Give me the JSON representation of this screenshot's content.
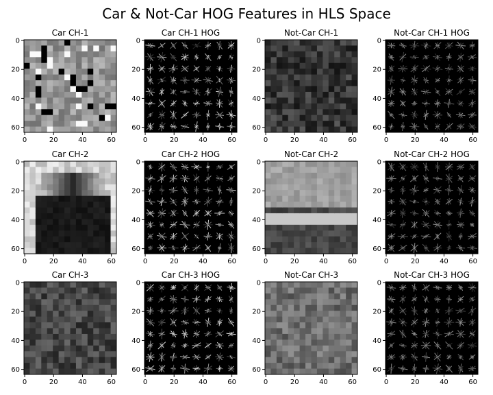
{
  "figure": {
    "title": "Car & Not-Car HOG Features in HLS Space",
    "x_ticks": [
      "0",
      "20",
      "40",
      "60"
    ],
    "y_ticks": [
      "0",
      "20",
      "40",
      "60"
    ],
    "panels": [
      {
        "title": "Car CH-1",
        "kind": "image",
        "tone": "car-ch1"
      },
      {
        "title": "Car CH-1 HOG",
        "kind": "hog",
        "tone": "car-hog1"
      },
      {
        "title": "Not-Car CH-1",
        "kind": "image",
        "tone": "notcar-ch1"
      },
      {
        "title": "Not-Car CH-1 HOG",
        "kind": "hog",
        "tone": "notcar-hog1"
      },
      {
        "title": "Car CH-2",
        "kind": "image",
        "tone": "car-ch2"
      },
      {
        "title": "Car CH-2 HOG",
        "kind": "hog",
        "tone": "car-hog2"
      },
      {
        "title": "Not-Car CH-2",
        "kind": "image",
        "tone": "notcar-ch2"
      },
      {
        "title": "Not-Car CH-2 HOG",
        "kind": "hog",
        "tone": "notcar-hog2"
      },
      {
        "title": "Car CH-3",
        "kind": "image",
        "tone": "car-ch3"
      },
      {
        "title": "Car CH-3 HOG",
        "kind": "hog",
        "tone": "car-hog3"
      },
      {
        "title": "Not-Car CH-3",
        "kind": "image",
        "tone": "notcar-ch3"
      },
      {
        "title": "Not-Car CH-3 HOG",
        "kind": "hog",
        "tone": "notcar-hog3"
      }
    ]
  }
}
